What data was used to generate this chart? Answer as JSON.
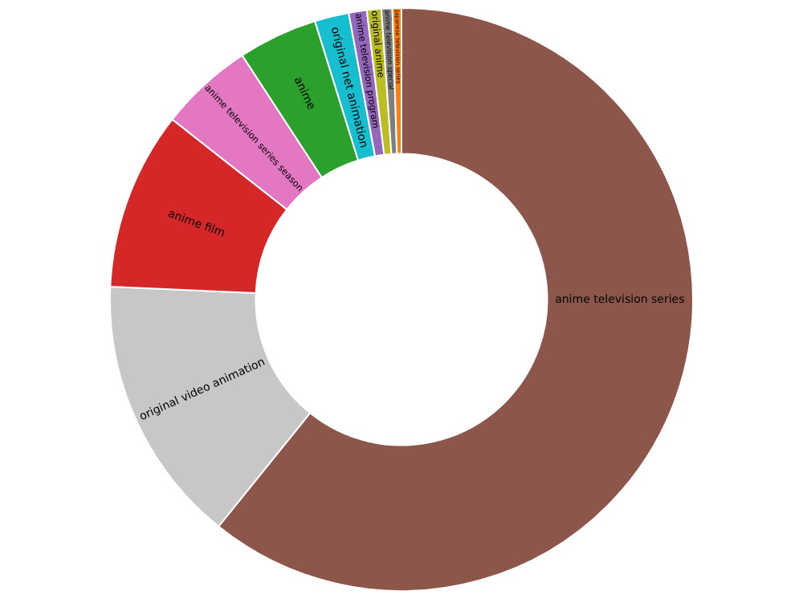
{
  "chart_data": {
    "type": "donut",
    "categories": [
      "anime television series",
      "original video animation",
      "anime film",
      "anime television series season",
      "anime",
      "original net animation",
      "anime television program",
      "original anime",
      "anime television special",
      "Japanese television series"
    ],
    "values": [
      60.8,
      14.9,
      9.9,
      5.2,
      4.4,
      1.9,
      1.0,
      0.8,
      0.6,
      0.5
    ],
    "colors": [
      "#8c564b",
      "#c7c7c7",
      "#d62728",
      "#e377c2",
      "#2ca02c",
      "#17becf",
      "#9467bd",
      "#bcbd22",
      "#7f7f7f",
      "#ff7f0e"
    ],
    "legend": false
  }
}
